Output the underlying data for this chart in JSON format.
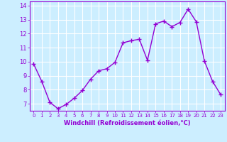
{
  "x": [
    0,
    1,
    2,
    3,
    4,
    5,
    6,
    7,
    8,
    9,
    10,
    11,
    12,
    13,
    14,
    15,
    16,
    17,
    18,
    19,
    20,
    21,
    22,
    23
  ],
  "y": [
    9.85,
    8.6,
    7.1,
    6.65,
    6.95,
    7.4,
    7.95,
    8.75,
    9.35,
    9.5,
    9.95,
    11.35,
    11.5,
    11.6,
    10.1,
    12.7,
    12.9,
    12.5,
    12.8,
    13.75,
    12.85,
    10.05,
    8.6,
    7.65
  ],
  "line_color": "#9400D3",
  "marker": "+",
  "marker_size": 4,
  "bg_color": "#cceeff",
  "grid_color": "#ffffff",
  "xlabel": "Windchill (Refroidissement éolien,°C)",
  "xlabel_color": "#9400D3",
  "tick_color": "#9400D3",
  "ylim": [
    6.5,
    14.3
  ],
  "yticks": [
    7,
    8,
    9,
    10,
    11,
    12,
    13,
    14
  ],
  "xlim": [
    -0.5,
    23.5
  ],
  "xticks": [
    0,
    1,
    2,
    3,
    4,
    5,
    6,
    7,
    8,
    9,
    10,
    11,
    12,
    13,
    14,
    15,
    16,
    17,
    18,
    19,
    20,
    21,
    22,
    23
  ],
  "line_width": 1.0,
  "marker_edge_width": 1.0
}
